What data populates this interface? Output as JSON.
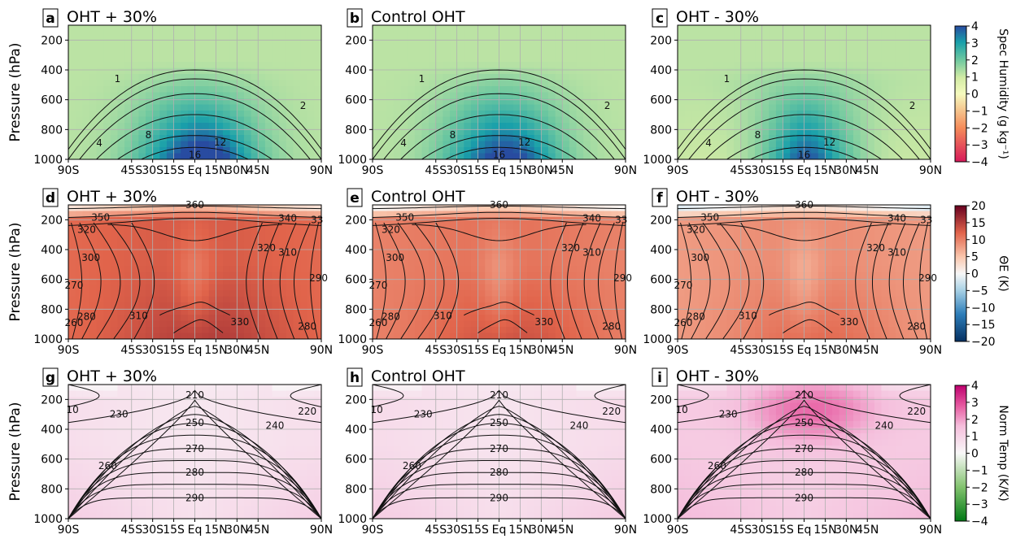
{
  "chart_data": {
    "type": "heatmap",
    "x": {
      "ticks": [
        -90,
        -45,
        -30,
        -15,
        0,
        15,
        30,
        45,
        90
      ],
      "tick_labels": [
        "90S",
        "45S",
        "30S",
        "15S",
        "Eq",
        "15N",
        "30N",
        "45N",
        "90N"
      ]
    },
    "y": {
      "ticks": [
        200,
        400,
        600,
        800,
        1000
      ],
      "tick_labels": [
        "200",
        "400",
        "600",
        "800",
        "1000"
      ],
      "range": [
        100,
        1000
      ],
      "inverted": true
    },
    "ylabel": "Pressure (hPa)",
    "grid": true,
    "columns": [
      {
        "letter": "a_d_g",
        "title": "OHT + 30%",
        "factor": 0.3
      },
      {
        "letter": "b_e_h",
        "title": "Control OHT",
        "factor": 0
      },
      {
        "letter": "c_f_i",
        "title": "OHT - 30%",
        "factor": -0.3
      }
    ],
    "panel_letters": [
      [
        "a",
        "b",
        "c"
      ],
      [
        "d",
        "e",
        "f"
      ],
      [
        "g",
        "h",
        "i"
      ]
    ],
    "rows": [
      {
        "variable": "spec_humidity",
        "colorbar_label": "Spec Humidity (g kg⁻¹)",
        "cbar_ticks": [
          4,
          3,
          2,
          1,
          0,
          -1,
          -2,
          -3,
          -4
        ],
        "cbar_tick_labels": [
          "4",
          "3",
          "2",
          "1",
          "0",
          "−1",
          "−2",
          "−3",
          "−4"
        ],
        "colormap": "yellow-green-blue / orange-red",
        "contour_labels": [
          {
            "text": "1",
            "lat": -55,
            "p": 460
          },
          {
            "text": "2",
            "lat": 77,
            "p": 640
          },
          {
            "text": "4",
            "lat": -68,
            "p": 890
          },
          {
            "text": "8",
            "lat": -33,
            "p": 835
          },
          {
            "text": "12",
            "lat": 18,
            "p": 885
          },
          {
            "text": "16",
            "lat": 0,
            "p": 970
          }
        ]
      },
      {
        "variable": "theta_e",
        "colorbar_label": "ΘE (K)",
        "cbar_ticks": [
          20,
          15,
          10,
          5,
          0,
          -5,
          -10,
          -15,
          -20
        ],
        "cbar_tick_labels": [
          "20",
          "15",
          "10",
          "5",
          "0",
          "−5",
          "−10",
          "−15",
          "−20"
        ],
        "colormap": "red-white-blue",
        "contour_labels": [
          {
            "text": "360",
            "lat": 0,
            "p": 100
          },
          {
            "text": "350",
            "lat": -67,
            "p": 185
          },
          {
            "text": "340",
            "lat": 66,
            "p": 190
          },
          {
            "text": "33",
            "lat": 87,
            "p": 200
          },
          {
            "text": "320",
            "lat": -77,
            "p": 265
          },
          {
            "text": "300",
            "lat": -74,
            "p": 455
          },
          {
            "text": "270",
            "lat": -86,
            "p": 640
          },
          {
            "text": "260",
            "lat": -86,
            "p": 890
          },
          {
            "text": "280",
            "lat": -77,
            "p": 850
          },
          {
            "text": "310",
            "lat": -40,
            "p": 845
          },
          {
            "text": "330",
            "lat": 32,
            "p": 885
          },
          {
            "text": "320",
            "lat": 51,
            "p": 390
          },
          {
            "text": "310",
            "lat": 66,
            "p": 420
          },
          {
            "text": "280",
            "lat": 80,
            "p": 915
          },
          {
            "text": "290",
            "lat": 88,
            "p": 590
          }
        ]
      },
      {
        "variable": "norm_temp",
        "colorbar_label": "Norm Temp (K/K)",
        "cbar_ticks": [
          4,
          3,
          2,
          1,
          0,
          -1,
          -2,
          -3,
          -4
        ],
        "cbar_tick_labels": [
          "4",
          "3",
          "2",
          "1",
          "0",
          "−1",
          "−2",
          "−3",
          "−4"
        ],
        "colormap": "pink-white-green",
        "contour_labels": [
          {
            "text": "210",
            "lat": 0,
            "p": 170
          },
          {
            "text": "220",
            "lat": 80,
            "p": 280
          },
          {
            "text": "230",
            "lat": -54,
            "p": 300
          },
          {
            "text": "240",
            "lat": 57,
            "p": 375
          },
          {
            "text": "250",
            "lat": 0,
            "p": 355
          },
          {
            "text": "260",
            "lat": -62,
            "p": 645
          },
          {
            "text": "270",
            "lat": 0,
            "p": 530
          },
          {
            "text": "280",
            "lat": 0,
            "p": 690
          },
          {
            "text": "290",
            "lat": 0,
            "p": 860
          },
          {
            "text": "10",
            "lat": -87,
            "p": 270
          }
        ]
      }
    ]
  }
}
